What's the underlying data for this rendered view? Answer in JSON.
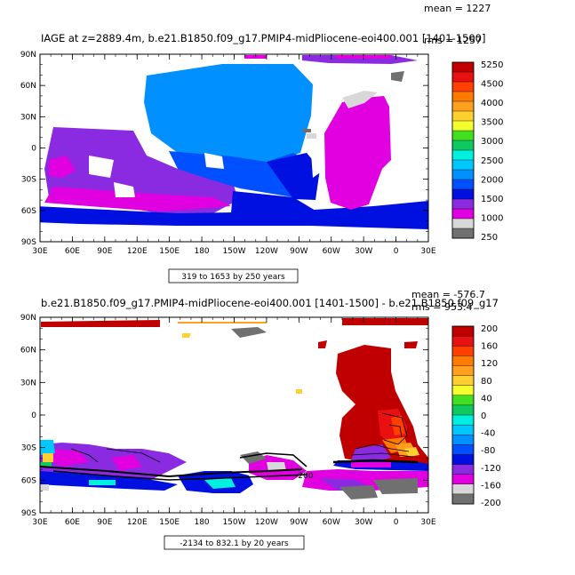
{
  "panels": [
    {
      "title": "IAGE at z=2889.4m, b.e21.B1850.f09_g17.PMIP4-midPliocene-eoi400.001 [1401-1500]",
      "mean_text": "mean = 1227",
      "rms_text": "rms = 1257",
      "range_text": "319 to 1653 by 250 years",
      "lat_labels": [
        "90N",
        "60N",
        "30N",
        "0",
        "30S",
        "60S",
        "90S"
      ],
      "lon_labels": [
        "30E",
        "60E",
        "90E",
        "120E",
        "150E",
        "180",
        "150W",
        "120W",
        "90W",
        "60W",
        "30W",
        "0",
        "30E"
      ],
      "colorbar": {
        "labels": [
          "5250",
          "4500",
          "4000",
          "3500",
          "3000",
          "2500",
          "2000",
          "1500",
          "1000",
          "250"
        ],
        "colors": [
          "#c00000",
          "#e81010",
          "#ff4000",
          "#ff7a00",
          "#ffa020",
          "#ffd030",
          "#f5ff30",
          "#40e020",
          "#10c860",
          "#00f0e0",
          "#00c8ff",
          "#0090ff",
          "#0050ff",
          "#0010e0",
          "#8a2be2",
          "#e000e0",
          "#d8d8d8",
          "#707070"
        ]
      }
    },
    {
      "title": "b.e21.B1850.f09_g17.PMIP4-midPliocene-eoi400.001 [1401-1500] - b.e21.B1850.f09_g17",
      "mean_text": "mean = -576.7",
      "rms_text": "rms = 953.4",
      "range_text": "-2134 to 832.1 by 20 years",
      "contour_label": "-200",
      "lat_labels": [
        "90N",
        "60N",
        "30N",
        "0",
        "30S",
        "60S",
        "90S"
      ],
      "lon_labels": [
        "30E",
        "60E",
        "90E",
        "120E",
        "150E",
        "180",
        "150W",
        "120W",
        "90W",
        "60W",
        "30W",
        "0",
        "30E"
      ],
      "colorbar": {
        "labels": [
          "200",
          "160",
          "120",
          "80",
          "40",
          "0",
          "-40",
          "-80",
          "-120",
          "-160",
          "-200"
        ],
        "colors": [
          "#c00000",
          "#e81010",
          "#ff4000",
          "#ff7a00",
          "#ffa020",
          "#ffd030",
          "#f5ff30",
          "#40e020",
          "#10c860",
          "#00f0e0",
          "#00c8ff",
          "#0090ff",
          "#0050ff",
          "#0010e0",
          "#8a2be2",
          "#e000e0",
          "#d8d8d8",
          "#707070"
        ]
      }
    }
  ]
}
